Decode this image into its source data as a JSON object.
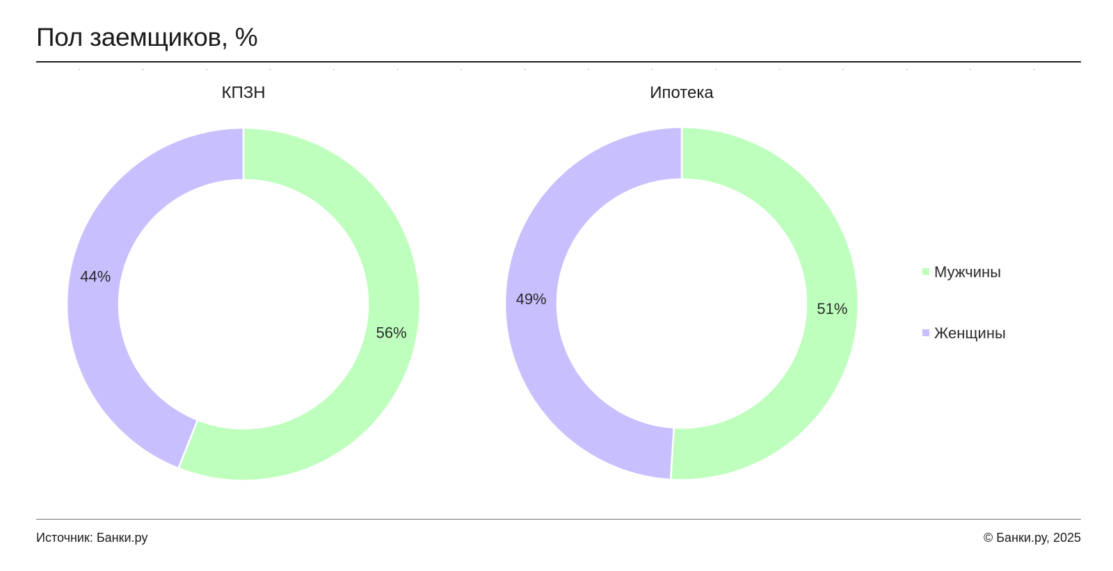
{
  "page": {
    "title": "Пол заемщиков, %",
    "source": "Источник: Банки.ру",
    "copyright": "© Банки.ру, 2025"
  },
  "colors": {
    "men": "#bfffbe",
    "women": "#c8bfff",
    "text": "#1a1a1a"
  },
  "legend": [
    {
      "label": "Мужчины",
      "color": "#bfffbe"
    },
    {
      "label": "Женщины",
      "color": "#c8bfff"
    }
  ],
  "chart_data": [
    {
      "type": "pie",
      "title": "КПЗН",
      "categories": [
        "Мужчины",
        "Женщины"
      ],
      "values": [
        56,
        44
      ],
      "labels": [
        "56%",
        "44%"
      ]
    },
    {
      "type": "pie",
      "title": "Ипотека",
      "categories": [
        "Мужчины",
        "Женщины"
      ],
      "values": [
        51,
        49
      ],
      "labels": [
        "51%",
        "49%"
      ]
    }
  ]
}
